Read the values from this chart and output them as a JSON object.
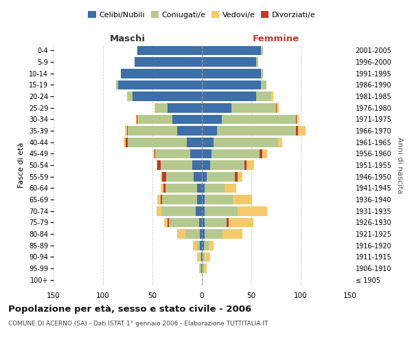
{
  "age_groups": [
    "100+",
    "95-99",
    "90-94",
    "85-89",
    "80-84",
    "75-79",
    "70-74",
    "65-69",
    "60-64",
    "55-59",
    "50-54",
    "45-49",
    "40-44",
    "35-39",
    "30-34",
    "25-29",
    "20-24",
    "15-19",
    "10-14",
    "5-9",
    "0-4"
  ],
  "birth_years": [
    "≤ 1905",
    "1906-1910",
    "1911-1915",
    "1916-1920",
    "1921-1925",
    "1926-1930",
    "1931-1935",
    "1936-1940",
    "1941-1945",
    "1946-1950",
    "1951-1955",
    "1956-1960",
    "1961-1965",
    "1966-1970",
    "1971-1975",
    "1976-1980",
    "1981-1985",
    "1986-1990",
    "1991-1995",
    "1996-2000",
    "2001-2005"
  ],
  "maschi": {
    "celibi": [
      0,
      1,
      1,
      2,
      2,
      3,
      6,
      5,
      5,
      8,
      10,
      12,
      15,
      25,
      30,
      35,
      70,
      85,
      82,
      68,
      65
    ],
    "coniugati": [
      0,
      1,
      1,
      3,
      15,
      30,
      35,
      35,
      32,
      28,
      32,
      35,
      60,
      50,
      35,
      12,
      5,
      2,
      0,
      0,
      0
    ],
    "vedovi": [
      0,
      1,
      3,
      4,
      8,
      3,
      5,
      3,
      3,
      2,
      1,
      1,
      2,
      2,
      1,
      1,
      1,
      0,
      0,
      0,
      0
    ],
    "divorziati": [
      0,
      0,
      0,
      0,
      0,
      2,
      0,
      2,
      2,
      4,
      3,
      1,
      2,
      1,
      1,
      0,
      0,
      0,
      0,
      0,
      0
    ]
  },
  "femmine": {
    "nubili": [
      0,
      0,
      1,
      2,
      3,
      3,
      3,
      3,
      3,
      5,
      8,
      10,
      12,
      15,
      20,
      30,
      55,
      60,
      60,
      55,
      60
    ],
    "coniugate": [
      0,
      2,
      2,
      5,
      18,
      22,
      33,
      28,
      20,
      28,
      35,
      48,
      65,
      80,
      75,
      45,
      15,
      5,
      2,
      2,
      2
    ],
    "vedove": [
      0,
      3,
      5,
      5,
      20,
      25,
      30,
      20,
      12,
      5,
      8,
      5,
      4,
      8,
      2,
      2,
      2,
      0,
      0,
      0,
      0
    ],
    "divorziate": [
      0,
      0,
      0,
      0,
      0,
      2,
      0,
      0,
      0,
      3,
      2,
      3,
      0,
      2,
      1,
      1,
      0,
      0,
      0,
      0,
      0
    ]
  },
  "colors": {
    "celibi": "#3d6fa8",
    "coniugati": "#b5c98e",
    "vedovi": "#f5c96a",
    "divorziati": "#c0392b"
  },
  "xlim": 150,
  "title": "Popolazione per età, sesso e stato civile - 2006",
  "subtitle": "COMUNE DI ACERNO (SA) - Dati ISTAT 1° gennaio 2006 - Elaborazione TUTTITALIA.IT",
  "ylabel_left": "Fasce di età",
  "ylabel_right": "Anni di nascita",
  "xlabel_left": "Maschi",
  "xlabel_right": "Femmine",
  "legend_labels": [
    "Celibi/Nubili",
    "Coniugati/e",
    "Vedovi/e",
    "Divorziati/e"
  ],
  "background_color": "#ffffff",
  "grid_color": "#cccccc"
}
